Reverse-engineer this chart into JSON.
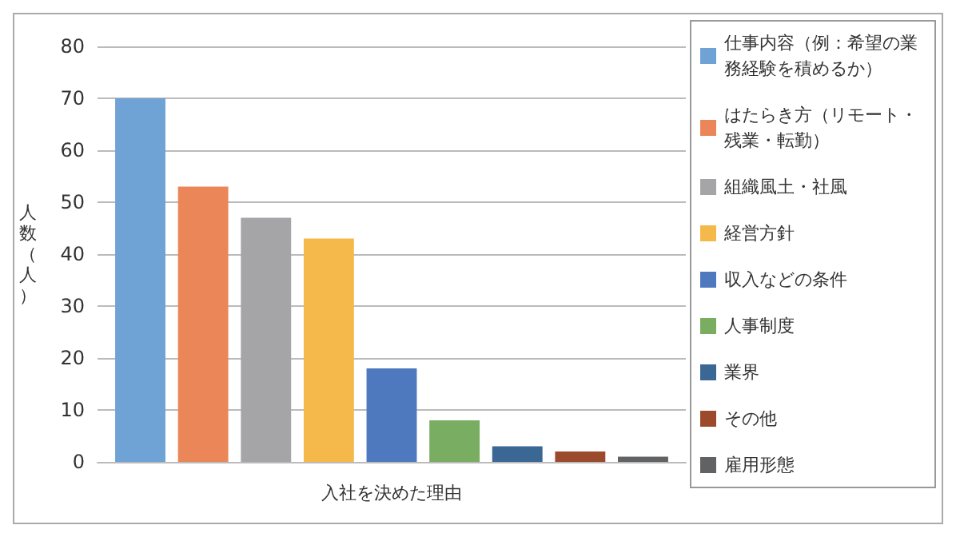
{
  "chart_data": {
    "type": "bar",
    "xlabel": "入社を決めた理由",
    "ylabel": "人数（人）",
    "categories": [
      null
    ],
    "series": [
      {
        "name": "仕事内容（例：希望の業務経験を積めるか）",
        "color": "#6fa3d6",
        "values": [
          70
        ]
      },
      {
        "name": "はたらき方（リモート・残業・転勤）",
        "color": "#eb8658",
        "values": [
          53
        ]
      },
      {
        "name": "組織風土・社風",
        "color": "#a5a5a8",
        "values": [
          47
        ]
      },
      {
        "name": "経営方針",
        "color": "#f4b94a",
        "values": [
          43
        ]
      },
      {
        "name": "収入などの条件",
        "color": "#4f79be",
        "values": [
          18
        ]
      },
      {
        "name": "人事制度",
        "color": "#79ad62",
        "values": [
          8
        ]
      },
      {
        "name": "業界",
        "color": "#3b6795",
        "values": [
          3
        ]
      },
      {
        "name": "その他",
        "color": "#9c4a2c",
        "values": [
          2
        ]
      },
      {
        "name": "雇用形態",
        "color": "#606264",
        "values": [
          1
        ]
      }
    ],
    "ylim": [
      0,
      80
    ],
    "yticks": [
      0,
      10,
      20,
      30,
      40,
      50,
      60,
      70,
      80
    ],
    "grid": "y",
    "legend": "right"
  }
}
